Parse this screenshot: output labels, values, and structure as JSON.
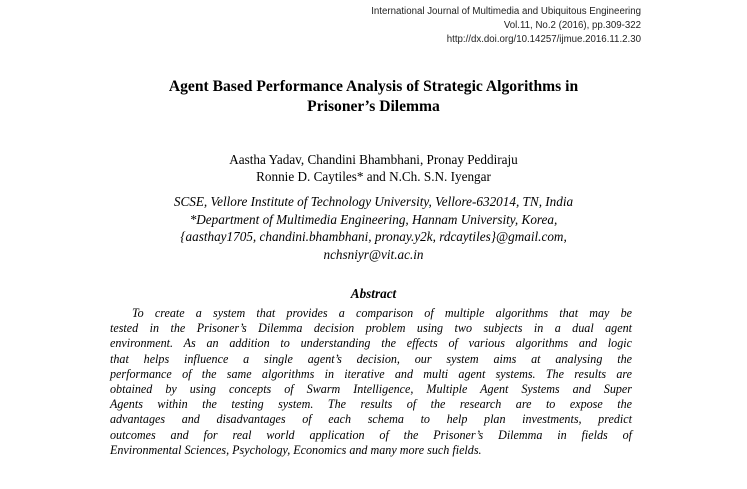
{
  "journal": {
    "name": "International Journal of Multimedia and Ubiquitous Engineering",
    "volume": "Vol.11, No.2 (2016), pp.309-322",
    "doi": "http://dx.doi.org/10.14257/ijmue.2016.11.2.30"
  },
  "paper": {
    "title_line_1": "Agent Based Performance Analysis of Strategic Algorithms in",
    "title_line_2": "Prisoner’s Dilemma",
    "authors_line_1": "Aastha Yadav, Chandini Bhambhani, Pronay Peddiraju",
    "authors_line_2": "Ronnie D. Caytiles* and N.Ch. S.N. Iyengar",
    "affiliation_lines": [
      "SCSE, Vellore Institute of Technology University, Vellore-632014, TN, India",
      "*Department of Multimedia Engineering, Hannam University, Korea,",
      "{aasthay1705, chandini.bhambhani, pronay.y2k, rdcaytiles}@gmail.com,",
      "nchsniyr@vit.ac.in"
    ]
  },
  "abstract": {
    "heading": "Abstract",
    "lines": [
      "To create a system that provides a comparison of multiple algorithms that may be",
      "tested in the Prisoner’s Dilemma decision problem using two subjects in a dual agent",
      "environment. As an addition to understanding the effects of various algorithms and logic",
      "that helps influence a single agent’s decision, our system aims at analysing the",
      "performance of the same algorithms in iterative and multi agent systems. The results are",
      "obtained by using concepts of Swarm Intelligence, Multiple Agent Systems and Super",
      "Agents within the testing system. The results of the research are to expose the",
      "advantages and disadvantages of each schema to help plan investments, predict",
      "outcomes and for real world application of the Prisoner’s Dilemma in fields of",
      "Environmental Sciences, Psychology, Economics and many more such fields."
    ]
  }
}
